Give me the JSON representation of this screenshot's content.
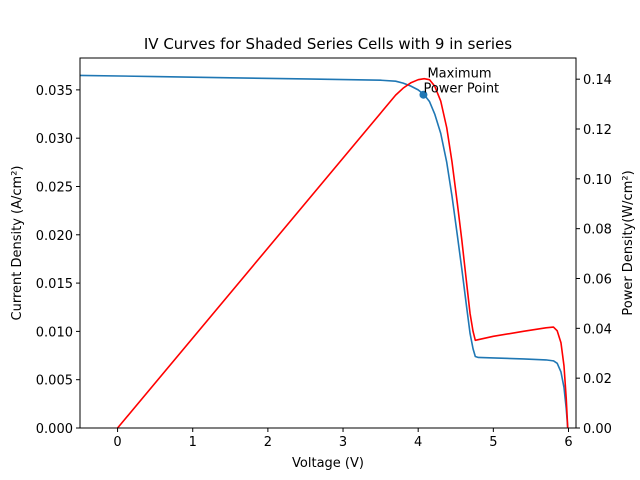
{
  "chart_data": {
    "type": "line",
    "title": "IV Curves for Shaded Series Cells with 9 in series",
    "xlabel": "Voltage (V)",
    "ylabel_left": "Current Density (A/cm²)",
    "ylabel_right": "Power Density(W/cm²)",
    "xlim": [
      -0.5,
      6.1
    ],
    "ylim_left": [
      0,
      0.0383
    ],
    "ylim_right": [
      0,
      0.1485
    ],
    "x_ticks": [
      "0",
      "1",
      "2",
      "3",
      "4",
      "5",
      "6"
    ],
    "y_left_ticks": [
      "0.000",
      "0.005",
      "0.010",
      "0.015",
      "0.020",
      "0.025",
      "0.030",
      "0.035"
    ],
    "y_right_ticks": [
      "0.00",
      "0.02",
      "0.04",
      "0.06",
      "0.08",
      "0.10",
      "0.12",
      "0.14"
    ],
    "grid": false,
    "series": [
      {
        "axis": "left",
        "color": "#1f77b4",
        "points": [
          [
            -0.5,
            0.0365
          ],
          [
            0.5,
            0.03638
          ],
          [
            1.5,
            0.03625
          ],
          [
            2.5,
            0.03613
          ],
          [
            3.0,
            0.03607
          ],
          [
            3.5,
            0.036
          ],
          [
            3.7,
            0.0359
          ],
          [
            3.8,
            0.0357
          ],
          [
            3.9,
            0.0354
          ],
          [
            4.0,
            0.035
          ],
          [
            4.08,
            0.0345
          ],
          [
            4.15,
            0.0338
          ],
          [
            4.22,
            0.0325
          ],
          [
            4.3,
            0.0305
          ],
          [
            4.38,
            0.0275
          ],
          [
            4.45,
            0.024
          ],
          [
            4.52,
            0.02
          ],
          [
            4.58,
            0.0165
          ],
          [
            4.64,
            0.0128
          ],
          [
            4.69,
            0.0098
          ],
          [
            4.73,
            0.0082
          ],
          [
            4.76,
            0.0074
          ],
          [
            4.8,
            0.0073
          ],
          [
            5.0,
            0.00725
          ],
          [
            5.4,
            0.00715
          ],
          [
            5.7,
            0.00705
          ],
          [
            5.8,
            0.00695
          ],
          [
            5.85,
            0.0067
          ],
          [
            5.9,
            0.0058
          ],
          [
            5.94,
            0.0042
          ],
          [
            5.97,
            0.002
          ],
          [
            5.99,
            0.0
          ]
        ]
      },
      {
        "axis": "right",
        "color": "#ff0000",
        "points": [
          [
            0.0,
            0.0
          ],
          [
            3.7,
            0.1336
          ],
          [
            3.8,
            0.1364
          ],
          [
            3.9,
            0.1385
          ],
          [
            4.0,
            0.1398
          ],
          [
            4.08,
            0.1402
          ],
          [
            4.15,
            0.1398
          ],
          [
            4.22,
            0.1372
          ],
          [
            4.3,
            0.1312
          ],
          [
            4.38,
            0.1205
          ],
          [
            4.45,
            0.1068
          ],
          [
            4.52,
            0.0904
          ],
          [
            4.58,
            0.0756
          ],
          [
            4.64,
            0.0594
          ],
          [
            4.69,
            0.046
          ],
          [
            4.73,
            0.0388
          ],
          [
            4.76,
            0.0352
          ],
          [
            5.0,
            0.0368
          ],
          [
            5.4,
            0.0388
          ],
          [
            5.7,
            0.0402
          ],
          [
            5.8,
            0.0405
          ],
          [
            5.85,
            0.039
          ],
          [
            5.9,
            0.0342
          ],
          [
            5.94,
            0.025
          ],
          [
            5.97,
            0.0119
          ],
          [
            5.99,
            0.0
          ]
        ]
      }
    ],
    "marker": {
      "x": 4.07,
      "y": 0.0345,
      "color": "#1f77b4"
    },
    "annotation": {
      "lines": [
        "Maximum",
        "Power Point"
      ],
      "x": 4.07,
      "y": 0.0345
    }
  }
}
